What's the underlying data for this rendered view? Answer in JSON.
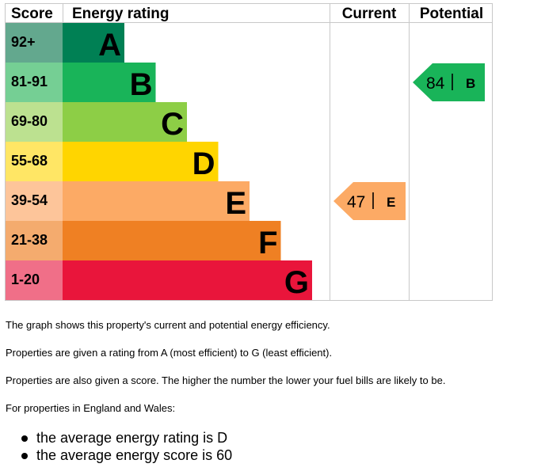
{
  "chart_data": {
    "type": "table",
    "headers": {
      "score": "Score",
      "rating": "Energy rating",
      "current": "Current",
      "potential": "Potential"
    },
    "bands": [
      {
        "letter": "A",
        "score": "92+",
        "color": "#008054",
        "score_bg": "#63a88e"
      },
      {
        "letter": "B",
        "score": "81-91",
        "color": "#19b459",
        "score_bg": "#75cf94"
      },
      {
        "letter": "C",
        "score": "69-80",
        "color": "#8dce46",
        "score_bg": "#bce190"
      },
      {
        "letter": "D",
        "score": "55-68",
        "color": "#ffd500",
        "score_bg": "#ffe665"
      },
      {
        "letter": "E",
        "score": "39-54",
        "color": "#fcaa65",
        "score_bg": "#fdc59a"
      },
      {
        "letter": "F",
        "score": "21-38",
        "color": "#ef8023",
        "score_bg": "#f4ab6e"
      },
      {
        "letter": "G",
        "score": "1-20",
        "color": "#e9153b",
        "score_bg": "#f06f88"
      }
    ],
    "current": {
      "value": 47,
      "rating": "E",
      "color": "#fcaa65"
    },
    "potential": {
      "value": 84,
      "rating": "B",
      "color": "#19b459"
    }
  },
  "notes": {
    "line1": "The graph shows this property's current and potential energy efficiency.",
    "line2": "Properties are given a rating from A (most efficient) to G (least efficient).",
    "line3": "Properties are also given a score. The higher the number the lower your fuel bills are likely to be.",
    "line4": "For properties in England and Wales:",
    "bullets": [
      "the average energy rating is D",
      "the average energy score is 60"
    ]
  }
}
